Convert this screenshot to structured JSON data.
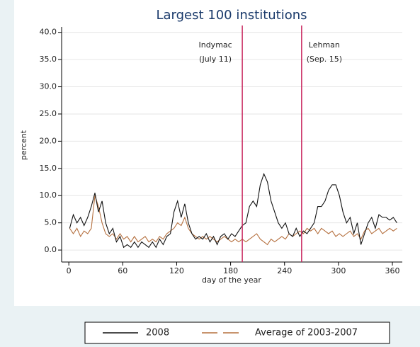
{
  "chart_data": {
    "type": "line",
    "title": "Largest 100 institutions",
    "xlabel": "day of the year",
    "ylabel": "percent",
    "xlim": [
      -8,
      371
    ],
    "ylim": [
      -2.2,
      41
    ],
    "xticks": [
      0,
      60,
      120,
      180,
      240,
      300,
      360
    ],
    "yticks": [
      {
        "value": 0,
        "label": "0.0"
      },
      {
        "value": 5,
        "label": "5.0"
      },
      {
        "value": 10,
        "label": "10.0"
      },
      {
        "value": 15,
        "label": "15.0"
      },
      {
        "value": 20,
        "label": "20.0"
      },
      {
        "value": 25,
        "label": "25.0"
      },
      {
        "value": 30,
        "label": "30.0"
      },
      {
        "value": 35,
        "label": "35.0"
      },
      {
        "value": 40,
        "label": "40.0"
      }
    ],
    "grid": true,
    "x": [
      1,
      5,
      9,
      13,
      17,
      21,
      25,
      29,
      33,
      37,
      41,
      45,
      49,
      53,
      57,
      61,
      65,
      69,
      73,
      77,
      81,
      85,
      89,
      93,
      97,
      101,
      105,
      109,
      113,
      117,
      121,
      125,
      129,
      133,
      137,
      141,
      145,
      149,
      153,
      157,
      161,
      165,
      169,
      173,
      177,
      181,
      185,
      189,
      193,
      197,
      201,
      205,
      209,
      213,
      217,
      221,
      225,
      229,
      233,
      237,
      241,
      245,
      249,
      253,
      257,
      261,
      265,
      269,
      273,
      277,
      281,
      285,
      289,
      293,
      297,
      301,
      305,
      309,
      313,
      317,
      321,
      325,
      329,
      333,
      337,
      341,
      345,
      349,
      353,
      357,
      361,
      365
    ],
    "series": [
      {
        "name": "2008",
        "color": "#111111",
        "values": [
          4,
          6.5,
          5,
          6,
          4.5,
          6,
          8,
          10.5,
          7,
          9,
          5,
          3,
          4,
          1.5,
          2.5,
          0.5,
          1,
          0.5,
          1.5,
          0.5,
          1.5,
          1,
          0.5,
          1.5,
          0.5,
          2,
          1,
          2.5,
          3,
          7,
          9,
          6,
          8.5,
          5,
          3,
          2,
          2.5,
          2,
          3,
          1.5,
          2.5,
          1,
          2.5,
          3,
          2,
          3,
          2.5,
          3.5,
          4.5,
          5,
          8,
          9,
          8,
          12,
          14,
          12.5,
          9,
          7,
          5,
          4,
          5,
          3,
          2.5,
          4,
          2.5,
          3.5,
          3,
          4,
          5,
          8,
          8,
          9,
          11,
          12,
          12,
          10,
          7,
          5,
          6,
          3,
          5,
          1,
          3,
          5,
          6,
          4,
          6.5,
          6,
          6,
          5.5,
          6,
          5
        ]
      },
      {
        "name": "Average of 2003-2007",
        "color": "#b5703f",
        "values": [
          4,
          3,
          4,
          2.5,
          3.5,
          3,
          4,
          10,
          8,
          5,
          3,
          2.5,
          3,
          2,
          3,
          2,
          2.5,
          1.5,
          2.5,
          1.5,
          2,
          2.5,
          1.5,
          2,
          1.5,
          2.5,
          2,
          3,
          3.5,
          4,
          5,
          4.5,
          6,
          4,
          3,
          2.5,
          2,
          2.5,
          2,
          2.5,
          2,
          1.5,
          2,
          2.5,
          2,
          1.5,
          2,
          1.5,
          2,
          1.5,
          2,
          2.5,
          3,
          2,
          1.5,
          1,
          2,
          1.5,
          2,
          2.5,
          2,
          3,
          2.5,
          3,
          3.5,
          3,
          4,
          3.5,
          4,
          3,
          4,
          3.5,
          3,
          3.5,
          2.5,
          3,
          2.5,
          3,
          3.5,
          2.5,
          3,
          2,
          3.5,
          4,
          3,
          3.5,
          4,
          3,
          3.5,
          4,
          3.5,
          4
        ]
      }
    ],
    "annotations": [
      {
        "x": 193,
        "label": "Indymac",
        "sublabel": "(July 11)",
        "color": "#c8245c"
      },
      {
        "x": 259,
        "label": "Lehman",
        "sublabel": "(Sep. 15)",
        "color": "#c8245c"
      }
    ]
  }
}
